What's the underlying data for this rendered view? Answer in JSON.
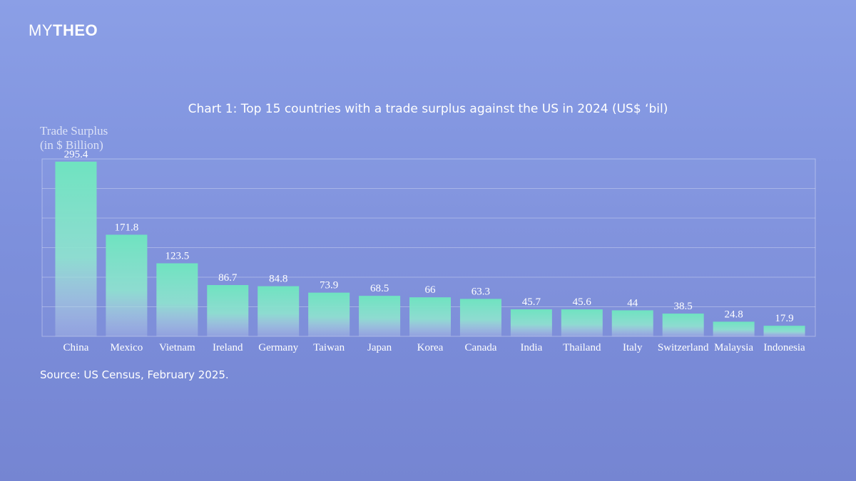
{
  "logo": {
    "part1": "MY",
    "part2": "THEO"
  },
  "chart_data": {
    "type": "bar",
    "title": "Chart 1: Top 15 countries with a trade surplus against the US in 2024 (US$ ‘bil)",
    "ylabel_line1": "Trade Surplus",
    "ylabel_line2": "(in $ Billion)",
    "xlabel": "",
    "categories": [
      "China",
      "Mexico",
      "Vietnam",
      "Ireland",
      "Germany",
      "Taiwan",
      "Japan",
      "Korea",
      "Canada",
      "India",
      "Thailand",
      "Italy",
      "Switzerland",
      "Malaysia",
      "Indonesia"
    ],
    "values": [
      295.4,
      171.8,
      123.5,
      86.7,
      84.8,
      73.9,
      68.5,
      66,
      63.3,
      45.7,
      45.6,
      44,
      38.5,
      24.8,
      17.9
    ],
    "value_labels": [
      "295.4",
      "171.8",
      "123.5",
      "86.7",
      "84.8",
      "73.9",
      "68.5",
      "66",
      "63.3",
      "45.7",
      "45.6",
      "44",
      "38.5",
      "24.8",
      "17.9"
    ],
    "ylim": [
      0,
      300
    ],
    "grid": true,
    "legend": "none",
    "bar_color": "#6fe3c0"
  },
  "source": "Source: US Census, February 2025."
}
